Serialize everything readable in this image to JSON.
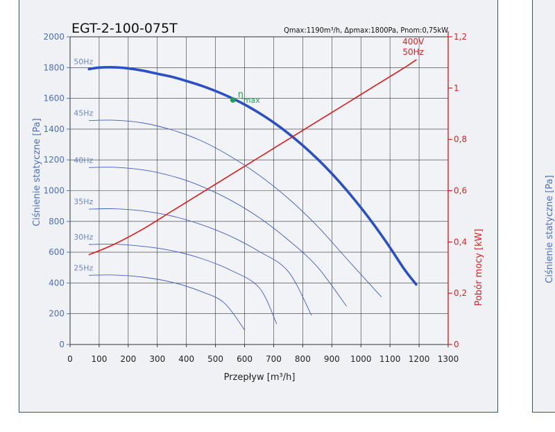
{
  "chart_data": {
    "type": "line",
    "title": "EGT-2-100-075T",
    "subtitle": "Qmax:1190m³/h, Δpmax:1800Pa, Pnom:0,75kW",
    "xlabel": "Przepływ [m³/h]",
    "ylabel": "Ciśnienie statyczne [Pa]",
    "y2label": "Pobór mocy [kW]",
    "xlim": [
      0,
      1300
    ],
    "ylim": [
      0,
      2000
    ],
    "y2lim": [
      0,
      1.2
    ],
    "x_ticks": [
      0,
      100,
      200,
      300,
      400,
      500,
      600,
      700,
      800,
      900,
      1000,
      1100,
      1200,
      1300
    ],
    "y_ticks": [
      0,
      200,
      400,
      600,
      800,
      1000,
      1200,
      1400,
      1600,
      1800,
      2000
    ],
    "y2_ticks": [
      0,
      0.2,
      0.4,
      0.6,
      0.8,
      1,
      1.2
    ],
    "y2_tick_labels": [
      "0",
      "0,2",
      "0,4",
      "0,6",
      "0,8",
      "1",
      "1,2"
    ],
    "grid": true,
    "series": [
      {
        "name": "50Hz",
        "axis": "left",
        "color": "#2a4fc8",
        "bold": true,
        "x": [
          65,
          100,
          150,
          200,
          250,
          300,
          350,
          400,
          450,
          500,
          550,
          600,
          650,
          700,
          750,
          800,
          850,
          900,
          950,
          1000,
          1050,
          1100,
          1150,
          1190
        ],
        "y": [
          1790,
          1800,
          1802,
          1795,
          1780,
          1760,
          1740,
          1713,
          1683,
          1648,
          1607,
          1560,
          1505,
          1443,
          1373,
          1294,
          1207,
          1111,
          1005,
          890,
          765,
          630,
          487,
          390
        ]
      },
      {
        "name": "45Hz",
        "axis": "left",
        "color": "#3d5cc7",
        "x": [
          65,
          150,
          250,
          350,
          450,
          550,
          650,
          750,
          850,
          950,
          1070
        ],
        "y": [
          1455,
          1458,
          1440,
          1395,
          1325,
          1225,
          1100,
          950,
          770,
          560,
          310
        ]
      },
      {
        "name": "40Hz",
        "axis": "left",
        "color": "#3d5cc7",
        "x": [
          65,
          150,
          250,
          350,
          450,
          550,
          650,
          750,
          850,
          950
        ],
        "y": [
          1150,
          1152,
          1135,
          1095,
          1030,
          940,
          825,
          680,
          505,
          250
        ]
      },
      {
        "name": "35Hz",
        "axis": "left",
        "color": "#3d5cc7",
        "x": [
          65,
          150,
          250,
          350,
          450,
          550,
          650,
          750,
          830
        ],
        "y": [
          880,
          882,
          868,
          835,
          780,
          705,
          605,
          475,
          190
        ]
      },
      {
        "name": "30Hz",
        "axis": "left",
        "color": "#3d5cc7",
        "x": [
          65,
          150,
          250,
          350,
          450,
          550,
          650,
          710
        ],
        "y": [
          650,
          652,
          638,
          610,
          560,
          485,
          370,
          135
        ]
      },
      {
        "name": "25Hz",
        "axis": "left",
        "color": "#3d5cc7",
        "x": [
          65,
          150,
          250,
          350,
          450,
          530,
          600
        ],
        "y": [
          450,
          452,
          438,
          405,
          345,
          270,
          95
        ]
      },
      {
        "name": "400V 50Hz",
        "axis": "right",
        "color": "#e01818",
        "x": [
          65,
          150,
          250,
          350,
          450,
          550,
          650,
          750,
          850,
          950,
          1050,
          1150,
          1190
        ],
        "y": [
          0.35,
          0.39,
          0.45,
          0.52,
          0.59,
          0.66,
          0.73,
          0.8,
          0.87,
          0.94,
          1.01,
          1.08,
          1.11
        ]
      }
    ],
    "series_labels": {
      "50Hz": "50Hz",
      "45Hz": "45Hz",
      "40Hz": "40Hz",
      "35Hz": "35Hz",
      "30Hz": "30Hz",
      "25Hz": "25Hz",
      "power_line1": "400V",
      "power_line2": "50Hz"
    },
    "annotations": [
      {
        "text": "η",
        "subscript": "max",
        "x": 560,
        "y": 1590,
        "color": "#22a050"
      }
    ],
    "colors": {
      "grid": "#333333",
      "left_axis": "#4a6fbf",
      "right_axis": "#e02020",
      "eta": "#22a050"
    }
  }
}
